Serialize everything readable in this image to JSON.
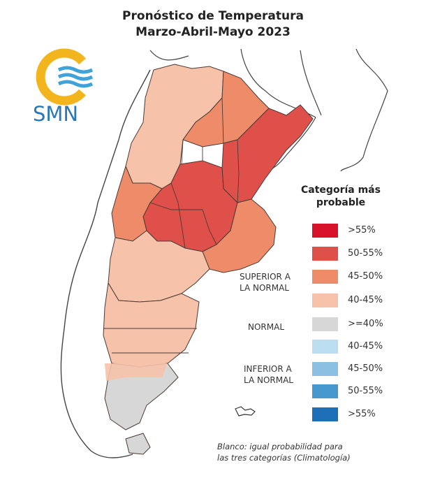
{
  "title_line1": "Pronóstico de Temperatura",
  "title_line2": "Marzo-Abril-Mayo 2023",
  "logo": {
    "text": "SMN",
    "icon": "smn-sun-waves-logo"
  },
  "legend": {
    "title_line1": "Categoría más",
    "title_line2": "probable",
    "items": [
      {
        "label": ">55%",
        "color": "#d7122a"
      },
      {
        "label": "50-55%",
        "color": "#e0504a"
      },
      {
        "label": "45-50%",
        "color": "#ee8c6a"
      },
      {
        "label": "40-45%",
        "color": "#f6c2aa"
      },
      {
        "label": ">=40%",
        "color": "#d7d7d7"
      },
      {
        "label": "40-45%",
        "color": "#bcdcef"
      },
      {
        "label": "45-50%",
        "color": "#8cc0e2"
      },
      {
        "label": "50-55%",
        "color": "#4898d0"
      },
      {
        "label": ">55%",
        "color": "#1e6fb8"
      }
    ],
    "groups": {
      "superior_line1": "SUPERIOR A",
      "superior_line2": "LA NORMAL",
      "normal": "NORMAL",
      "inferior_line1": "INFERIOR A",
      "inferior_line2": "LA NORMAL"
    }
  },
  "note_line1": "Blanco: igual probabilidad para",
  "note_line2": "las tres categorías (Climatología)"
}
